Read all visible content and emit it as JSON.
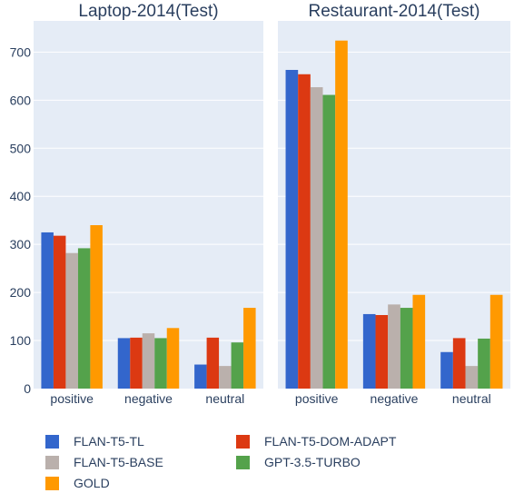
{
  "colors": {
    "plot_bg": "#e5ecf6",
    "grid": "#ffffff",
    "text": "#2a3f5f",
    "FLAN-T5-TL": "#3366cc",
    "FLAN-T5-DOM-ADAPT": "#dc3912",
    "FLAN-T5-BASE": "#bab0ac",
    "GPT-3.5-TURBO": "#54a24b",
    "GOLD": "#ff9900"
  },
  "chart_data": [
    {
      "type": "bar",
      "title": "Laptop-2014(Test)",
      "categories": [
        "positive",
        "negative",
        "neutral"
      ],
      "series": [
        {
          "name": "FLAN-T5-TL",
          "values": [
            325,
            105,
            50
          ]
        },
        {
          "name": "FLAN-T5-DOM-ADAPT",
          "values": [
            318,
            106,
            106
          ]
        },
        {
          "name": "FLAN-T5-BASE",
          "values": [
            282,
            115,
            47
          ]
        },
        {
          "name": "GPT-3.5-TURBO",
          "values": [
            292,
            105,
            96
          ]
        },
        {
          "name": "GOLD",
          "values": [
            340,
            126,
            168
          ]
        }
      ],
      "ylim": [
        0,
        765
      ],
      "yticks": [
        0,
        100,
        200,
        300,
        400,
        500,
        600,
        700
      ],
      "grid": true
    },
    {
      "type": "bar",
      "title": "Restaurant-2014(Test)",
      "categories": [
        "positive",
        "negative",
        "neutral"
      ],
      "series": [
        {
          "name": "FLAN-T5-TL",
          "values": [
            663,
            155,
            76
          ]
        },
        {
          "name": "FLAN-T5-DOM-ADAPT",
          "values": [
            654,
            153,
            105
          ]
        },
        {
          "name": "FLAN-T5-BASE",
          "values": [
            627,
            175,
            47
          ]
        },
        {
          "name": "GPT-3.5-TURBO",
          "values": [
            611,
            168,
            104
          ]
        },
        {
          "name": "GOLD",
          "values": [
            724,
            195,
            195
          ]
        }
      ],
      "ylim": [
        0,
        765
      ],
      "grid": true
    }
  ],
  "legend": {
    "placement": "bottom",
    "items": [
      {
        "label": "FLAN-T5-TL"
      },
      {
        "label": "FLAN-T5-DOM-ADAPT"
      },
      {
        "label": "FLAN-T5-BASE"
      },
      {
        "label": "GPT-3.5-TURBO"
      },
      {
        "label": "GOLD"
      }
    ]
  }
}
